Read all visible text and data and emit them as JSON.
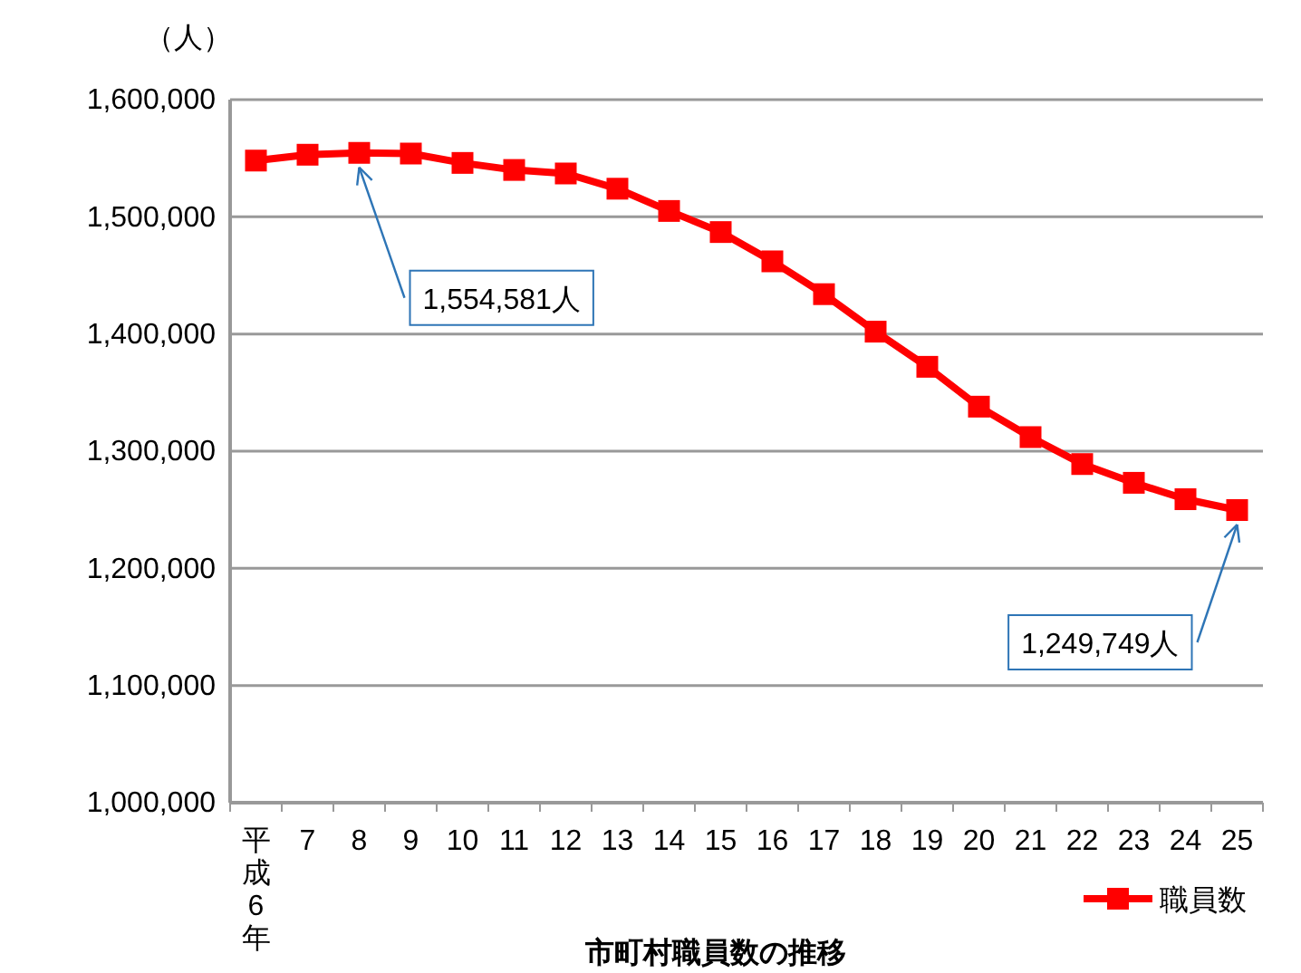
{
  "chart_data": {
    "type": "line",
    "title": "市町村職員数の推移",
    "ylabel": "（人）",
    "categories": [
      "平成6年",
      "7",
      "8",
      "9",
      "10",
      "11",
      "12",
      "13",
      "14",
      "15",
      "16",
      "17",
      "18",
      "19",
      "20",
      "21",
      "22",
      "23",
      "24",
      "25"
    ],
    "series": [
      {
        "name": "職員数",
        "color": "#ff0000",
        "values": [
          1548000,
          1553000,
          1554581,
          1554000,
          1546000,
          1540000,
          1537000,
          1524000,
          1505000,
          1487000,
          1462000,
          1434000,
          1402000,
          1372000,
          1338000,
          1312000,
          1289000,
          1273000,
          1259000,
          1249749
        ]
      }
    ],
    "ylim": [
      1000000,
      1600000
    ],
    "yticks": [
      {
        "value": 1000000,
        "label": "1,000,000"
      },
      {
        "value": 1100000,
        "label": "1,100,000"
      },
      {
        "value": 1200000,
        "label": "1,200,000"
      },
      {
        "value": 1300000,
        "label": "1,300,000"
      },
      {
        "value": 1400000,
        "label": "1,400,000"
      },
      {
        "value": 1500000,
        "label": "1,500,000"
      },
      {
        "value": 1600000,
        "label": "1,600,000"
      }
    ],
    "grid": "y",
    "legend": "bottom right",
    "marker": "square",
    "line_style": "solid",
    "annotations": [
      {
        "text": "1,554,581人",
        "x": "8",
        "y": 1554581
      },
      {
        "text": "1,249,749人",
        "x": "25",
        "y": 1249749
      }
    ]
  }
}
